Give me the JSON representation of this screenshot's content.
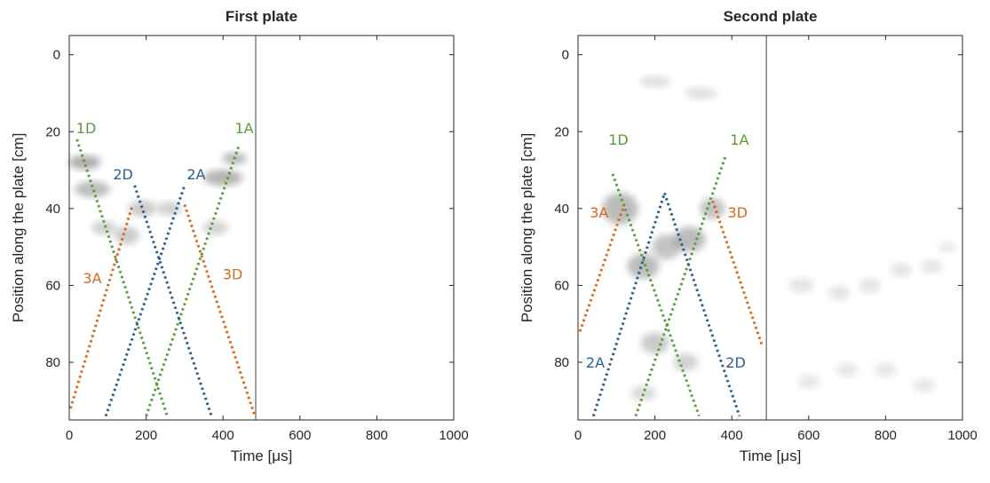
{
  "chart_data": [
    {
      "type": "line",
      "title": "First plate",
      "xlabel": "Time [μs]",
      "ylabel": "Position along the plate [cm]",
      "xlim": [
        0,
        1000
      ],
      "ylim": [
        95,
        -5
      ],
      "y_reversed": true,
      "xticks": [
        "0",
        "200",
        "400",
        "600",
        "800",
        "1000"
      ],
      "yticks": [
        "0",
        "20",
        "40",
        "60",
        "80"
      ],
      "grid": false,
      "vline": {
        "x": 485,
        "color": "#808080"
      },
      "series": [
        {
          "name": "1D",
          "color": "#5a9a3a",
          "points": [
            [
              20,
              22
            ],
            [
              255,
              94
            ]
          ]
        },
        {
          "name": "1A",
          "color": "#5a9a3a",
          "points": [
            [
              200,
              94
            ],
            [
              440,
              24
            ]
          ]
        },
        {
          "name": "2D",
          "color": "#2e5c8a",
          "points": [
            [
              170,
              34
            ],
            [
              370,
              94
            ]
          ]
        },
        {
          "name": "2A",
          "color": "#2e5c8a",
          "points": [
            [
              95,
              94
            ],
            [
              300,
              34
            ]
          ]
        },
        {
          "name": "3A",
          "color": "#d2691e",
          "points": [
            [
              3,
              92
            ],
            [
              165,
              39
            ]
          ]
        },
        {
          "name": "3D",
          "color": "#d2691e",
          "points": [
            [
              300,
              39
            ],
            [
              483,
              94
            ]
          ]
        }
      ],
      "annotations": [
        {
          "text": "1D",
          "x": 44,
          "y": 19,
          "color": "#5a9a3a"
        },
        {
          "text": "1A",
          "x": 455,
          "y": 19,
          "color": "#5a9a3a"
        },
        {
          "text": "2D",
          "x": 140,
          "y": 31,
          "color": "#2e5c8a"
        },
        {
          "text": "2A",
          "x": 330,
          "y": 31,
          "color": "#2e5c8a"
        },
        {
          "text": "3A",
          "x": 60,
          "y": 58,
          "color": "#d2691e"
        },
        {
          "text": "3D",
          "x": 425,
          "y": 57,
          "color": "#d2691e"
        }
      ]
    },
    {
      "type": "line",
      "title": "Second plate",
      "xlabel": "Time [μs]",
      "ylabel": "Position along the plate [cm]",
      "xlim": [
        0,
        1000
      ],
      "ylim": [
        95,
        -5
      ],
      "y_reversed": true,
      "xticks": [
        "0",
        "200",
        "400",
        "600",
        "800",
        "1000"
      ],
      "yticks": [
        "0",
        "20",
        "40",
        "60",
        "80"
      ],
      "grid": false,
      "vline": {
        "x": 490,
        "color": "#808080"
      },
      "series": [
        {
          "name": "1D",
          "color": "#5a9a3a",
          "points": [
            [
              90,
              31
            ],
            [
              315,
              94
            ]
          ]
        },
        {
          "name": "1A",
          "color": "#5a9a3a",
          "points": [
            [
              150,
              94
            ],
            [
              385,
              26
            ]
          ]
        },
        {
          "name": "3A",
          "color": "#d2691e",
          "points": [
            [
              5,
              72
            ],
            [
              120,
              39
            ]
          ]
        },
        {
          "name": "3D",
          "color": "#d2691e",
          "points": [
            [
              350,
              38
            ],
            [
              480,
              76
            ]
          ]
        },
        {
          "name": "2A",
          "color": "#2e5c8a",
          "points": [
            [
              40,
              94
            ],
            [
              225,
              36
            ]
          ]
        },
        {
          "name": "2D",
          "color": "#2e5c8a",
          "points": [
            [
              225,
              36
            ],
            [
              420,
              94
            ]
          ]
        }
      ],
      "annotations": [
        {
          "text": "1D",
          "x": 105,
          "y": 22,
          "color": "#5a9a3a"
        },
        {
          "text": "1A",
          "x": 420,
          "y": 22,
          "color": "#5a9a3a"
        },
        {
          "text": "3A",
          "x": 55,
          "y": 41,
          "color": "#d2691e"
        },
        {
          "text": "3D",
          "x": 415,
          "y": 41,
          "color": "#d2691e"
        },
        {
          "text": "2A",
          "x": 45,
          "y": 80,
          "color": "#2e5c8a"
        },
        {
          "text": "2D",
          "x": 410,
          "y": 80,
          "color": "#2e5c8a"
        }
      ]
    }
  ]
}
